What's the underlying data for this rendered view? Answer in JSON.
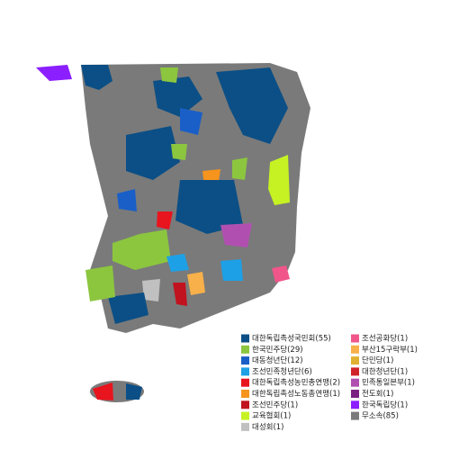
{
  "legend": {
    "items": [
      {
        "label": "대한독립촉성국민회(55)",
        "color": "#0b4f86"
      },
      {
        "label": "한국민주당(29)",
        "color": "#8cc63f"
      },
      {
        "label": "대동청년단(12)",
        "color": "#1a5fc7"
      },
      {
        "label": "조선민족청년단(6)",
        "color": "#1ea0e6"
      },
      {
        "label": "대한독립촉성농민총연맹(2)",
        "color": "#e8141e"
      },
      {
        "label": "대한독립촉성노동총연맹(1)",
        "color": "#f7941d"
      },
      {
        "label": "조선민주당(1)",
        "color": "#c1121f"
      },
      {
        "label": "교육협회(1)",
        "color": "#c6f224"
      },
      {
        "label": "대성회(1)",
        "color": "#c0c0c0"
      },
      {
        "label": "조선공화당(1)",
        "color": "#f0568a"
      },
      {
        "label": "부산15구락부(1)",
        "color": "#f7b04a"
      },
      {
        "label": "단민당(1)",
        "color": "#e0b030"
      },
      {
        "label": "대한청년단(1)",
        "color": "#d2232a"
      },
      {
        "label": "민족통일본부(1)",
        "color": "#b14fb0"
      },
      {
        "label": "전도회(1)",
        "color": "#7a2182"
      },
      {
        "label": "한국독립당(1)",
        "color": "#8b1fff"
      },
      {
        "label": "무소속(85)",
        "color": "#7a7a7a"
      }
    ],
    "rows_per_column": 9
  }
}
